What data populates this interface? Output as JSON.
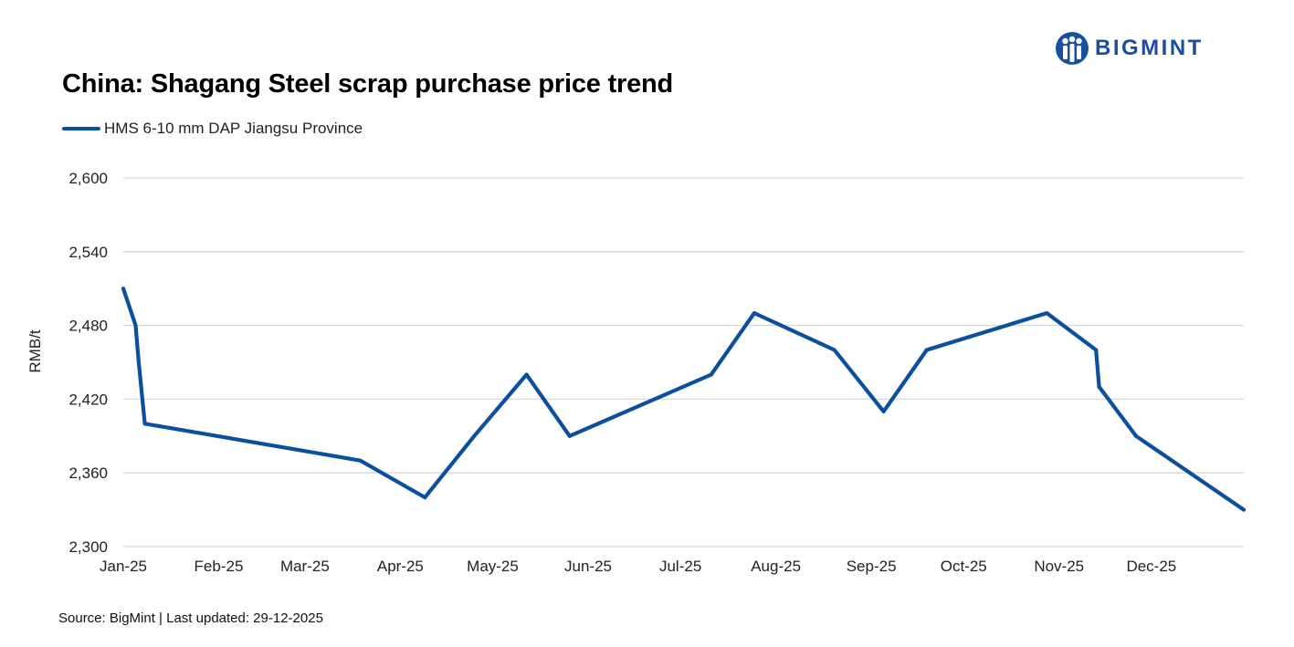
{
  "title": "China: Shagang Steel scrap purchase price trend",
  "logo": {
    "text": "BIGMINT",
    "icon": "bigmint-logo-icon",
    "color": "#1a4fa0"
  },
  "source": "Source: BigMint | Last updated: 29-12-2025",
  "colors": {
    "series": "#0b4fa1",
    "grid": "#d9d9d9"
  },
  "chart_data": {
    "type": "line",
    "ylabel": "RMB/t",
    "xlabel": "",
    "ylim": [
      2300,
      2600
    ],
    "yticks": [
      2300,
      2360,
      2420,
      2480,
      2540,
      2600
    ],
    "ytick_labels": [
      "2,300",
      "2,360",
      "2,420",
      "2,480",
      "2,540",
      "2,600"
    ],
    "xlim": [
      "2025-01-01",
      "2025-12-31"
    ],
    "xticks": [
      "2025-01-01",
      "2025-02-01",
      "2025-03-01",
      "2025-04-01",
      "2025-05-01",
      "2025-06-01",
      "2025-07-01",
      "2025-08-01",
      "2025-09-01",
      "2025-10-01",
      "2025-11-01",
      "2025-12-01"
    ],
    "xtick_labels": [
      "Jan-25",
      "Feb-25",
      "Mar-25",
      "Apr-25",
      "May-25",
      "Jun-25",
      "Jul-25",
      "Aug-25",
      "Sep-25",
      "Oct-25",
      "Nov-25",
      "Dec-25"
    ],
    "grid": true,
    "legend": "top-left",
    "series": [
      {
        "name": "HMS 6-10 mm DAP Jiangsu Province",
        "points": [
          {
            "x": "2025-01-01",
            "y": 2510
          },
          {
            "x": "2025-01-05",
            "y": 2480
          },
          {
            "x": "2025-01-06",
            "y": 2450
          },
          {
            "x": "2025-01-08",
            "y": 2400
          },
          {
            "x": "2025-03-19",
            "y": 2370
          },
          {
            "x": "2025-04-09",
            "y": 2340
          },
          {
            "x": "2025-04-25",
            "y": 2390
          },
          {
            "x": "2025-05-12",
            "y": 2440
          },
          {
            "x": "2025-05-26",
            "y": 2390
          },
          {
            "x": "2025-07-11",
            "y": 2440
          },
          {
            "x": "2025-07-25",
            "y": 2490
          },
          {
            "x": "2025-08-20",
            "y": 2460
          },
          {
            "x": "2025-09-05",
            "y": 2410
          },
          {
            "x": "2025-09-19",
            "y": 2460
          },
          {
            "x": "2025-10-28",
            "y": 2490
          },
          {
            "x": "2025-11-13",
            "y": 2460
          },
          {
            "x": "2025-11-14",
            "y": 2430
          },
          {
            "x": "2025-11-26",
            "y": 2390
          },
          {
            "x": "2025-12-31",
            "y": 2330
          }
        ]
      }
    ]
  }
}
